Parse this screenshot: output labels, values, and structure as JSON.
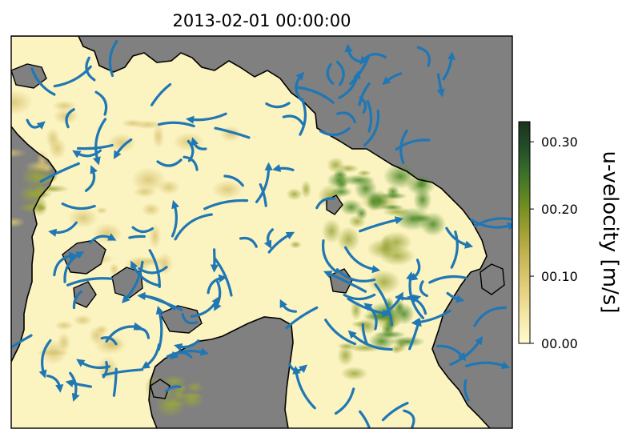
{
  "chart_data": {
    "type": "heatmap",
    "title": "2013-02-01 00:00:00",
    "xlabel": "",
    "ylabel": "",
    "map": {
      "land_color": "#808080",
      "coastline_color": "#000000",
      "streamline_color": "#1f77b4"
    },
    "colorbar": {
      "label": "u-velocity [m/s]",
      "range": [
        0.0,
        0.33
      ],
      "ticks": [
        0.0,
        0.1,
        0.2,
        0.3
      ],
      "tick_labels": [
        "00.00",
        "00.10",
        "00.20",
        "00.30"
      ],
      "colormap_stops": [
        "#fffbd0",
        "#f4e7a6",
        "#e3cf7c",
        "#c9b85a",
        "#a4a034",
        "#6f8c20",
        "#3f7428",
        "#25502a",
        "#1c321c"
      ]
    }
  }
}
